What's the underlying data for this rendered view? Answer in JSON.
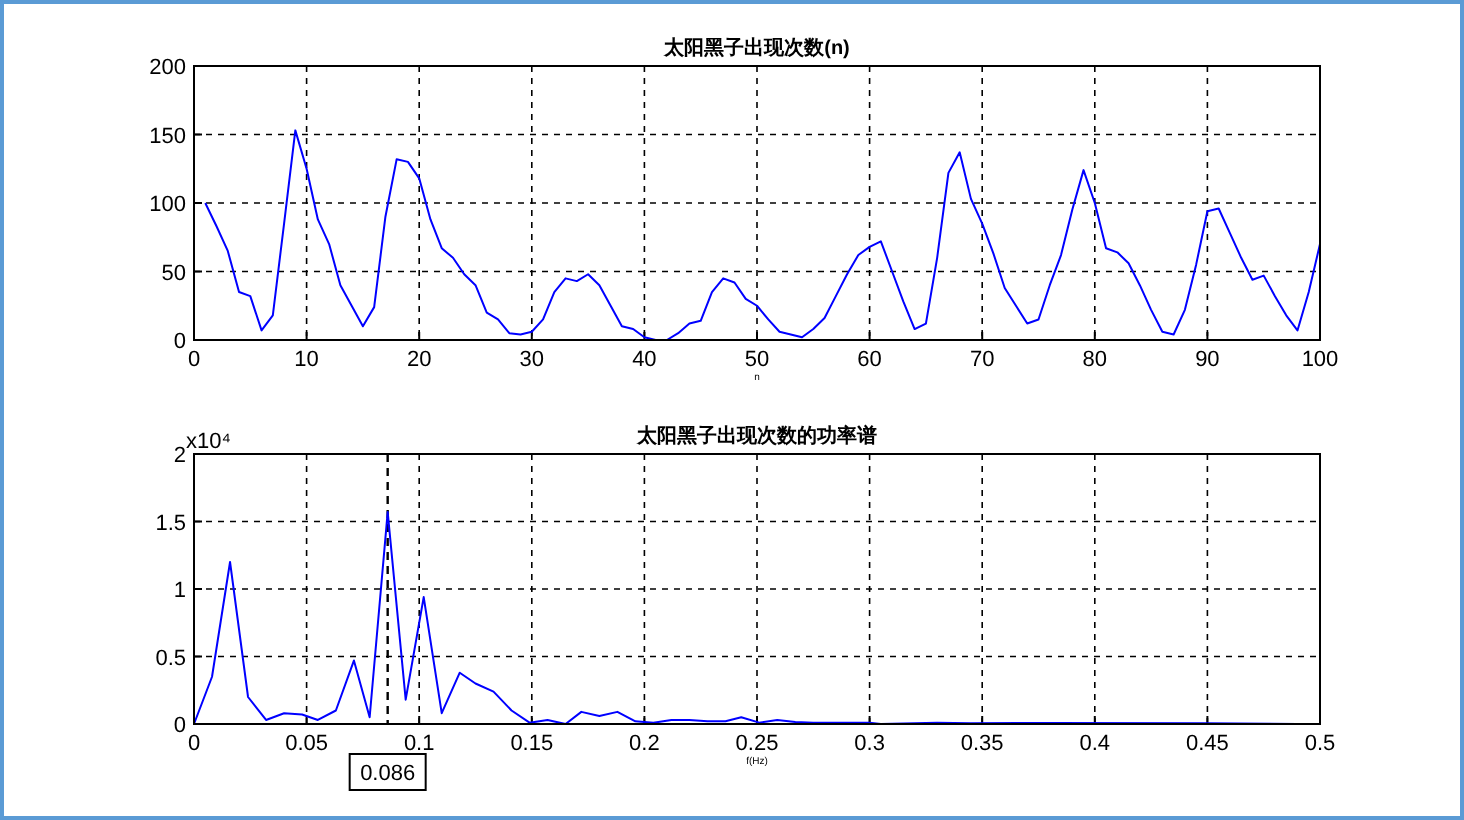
{
  "chart_data": [
    {
      "type": "line",
      "title": "太阳黑子出现次数(n)",
      "xlabel": "n",
      "grid": true,
      "line_style": "solid",
      "marker": "none",
      "xlim": [
        0,
        100
      ],
      "xticks": [
        0,
        10,
        20,
        30,
        40,
        50,
        60,
        70,
        80,
        90,
        100
      ],
      "ylim": [
        0,
        200
      ],
      "yticks": [
        0,
        50,
        100,
        150,
        200
      ],
      "x": [
        1,
        2,
        3,
        4,
        5,
        6,
        7,
        8,
        9,
        10,
        11,
        12,
        13,
        14,
        15,
        16,
        17,
        18,
        19,
        20,
        21,
        22,
        23,
        24,
        25,
        26,
        27,
        28,
        29,
        30,
        31,
        32,
        33,
        34,
        35,
        36,
        37,
        38,
        39,
        40,
        41,
        42,
        43,
        44,
        45,
        46,
        47,
        48,
        49,
        50,
        51,
        52,
        53,
        54,
        55,
        56,
        57,
        58,
        59,
        60,
        61,
        62,
        63,
        64,
        65,
        66,
        67,
        68,
        69,
        70,
        71,
        72,
        73,
        74,
        75,
        76,
        77,
        78,
        79,
        80,
        81,
        82,
        83,
        84,
        85,
        86,
        87,
        88,
        89,
        90,
        91,
        92,
        93,
        94,
        95,
        96,
        97,
        98,
        99,
        100
      ],
      "series": [
        {
          "color": "#0000ff",
          "values": [
            100,
            83,
            65,
            35,
            32,
            7,
            18,
            85,
            153,
            125,
            88,
            70,
            40,
            25,
            10,
            24,
            90,
            132,
            130,
            118,
            88,
            67,
            60,
            48,
            40,
            20,
            15,
            5,
            4,
            6,
            15,
            35,
            45,
            43,
            48,
            40,
            25,
            10,
            8,
            2,
            0,
            0,
            5,
            12,
            14,
            35,
            45,
            42,
            30,
            25,
            15,
            6,
            4,
            2,
            8,
            16,
            32,
            48,
            62,
            68,
            72,
            50,
            28,
            8,
            12,
            60,
            122,
            137,
            103,
            85,
            63,
            38,
            25,
            12,
            15,
            40,
            62,
            95,
            124,
            100,
            67,
            64,
            56,
            40,
            22,
            6,
            4,
            22,
            55,
            94,
            96,
            78,
            60,
            44,
            47,
            32,
            18,
            7,
            35,
            70
          ]
        }
      ]
    },
    {
      "type": "line",
      "title": "太阳黑子出现次数的功率谱",
      "xlabel": "f(Hz)",
      "grid": true,
      "line_style": "solid",
      "marker": "none",
      "xlim": [
        0,
        0.5
      ],
      "xticks": [
        0,
        0.05,
        0.1,
        0.15,
        0.2,
        0.25,
        0.3,
        0.35,
        0.4,
        0.45,
        0.5
      ],
      "ylim": [
        0,
        2
      ],
      "yticks": [
        0,
        0.5,
        1,
        1.5,
        2
      ],
      "annotations": [
        "x10⁴"
      ],
      "ref_lines": [
        {
          "axis": "x",
          "value": 0.086,
          "label": "0.086",
          "line_style": "dashed",
          "color": "#000000"
        }
      ],
      "x": [
        0,
        0.008,
        0.016,
        0.024,
        0.032,
        0.04,
        0.048,
        0.055,
        0.063,
        0.071,
        0.078,
        0.086,
        0.094,
        0.102,
        0.11,
        0.118,
        0.125,
        0.133,
        0.141,
        0.149,
        0.157,
        0.165,
        0.172,
        0.18,
        0.188,
        0.196,
        0.204,
        0.212,
        0.22,
        0.228,
        0.236,
        0.243,
        0.251,
        0.259,
        0.267,
        0.275,
        0.3,
        0.305,
        0.33,
        0.345,
        0.38,
        0.45,
        0.49
      ],
      "series": [
        {
          "color": "#0000ff",
          "values": [
            0,
            0.35,
            1.2,
            0.2,
            0.03,
            0.08,
            0.07,
            0.03,
            0.1,
            0.47,
            0.05,
            1.57,
            0.18,
            0.94,
            0.08,
            0.38,
            0.3,
            0.24,
            0.1,
            0.01,
            0.03,
            0,
            0.09,
            0.06,
            0.09,
            0.02,
            0.01,
            0.03,
            0.03,
            0.02,
            0.02,
            0.05,
            0.01,
            0.03,
            0.015,
            0.01,
            0.01,
            0,
            0.01,
            0.005,
            0.008,
            0.005,
            0
          ]
        }
      ]
    }
  ]
}
